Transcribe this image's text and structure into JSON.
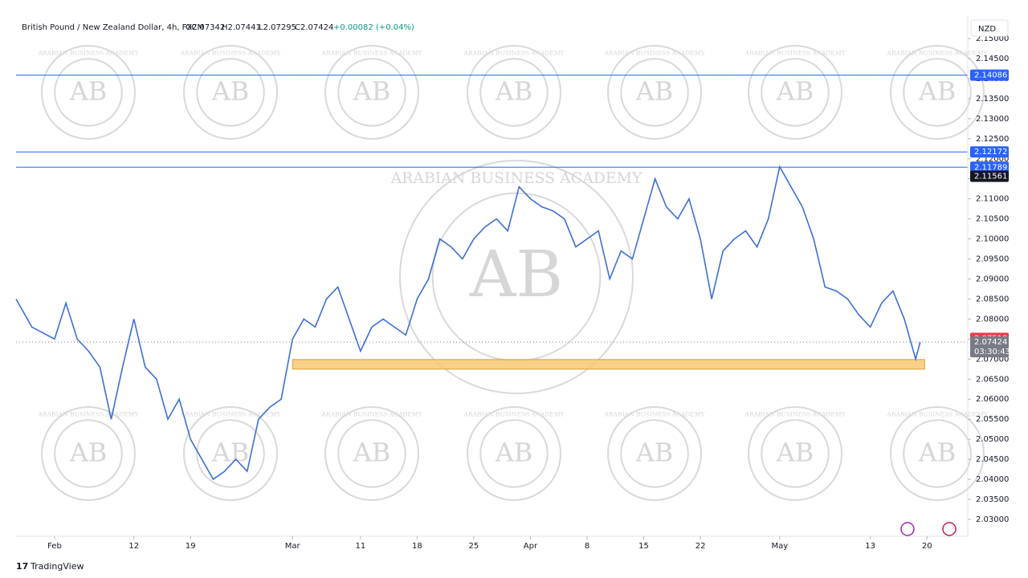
{
  "header": {
    "symbol": "British Pound / New Zealand Dollar, 4h, FXCM",
    "open": "O2.07342",
    "high": "H2.07441",
    "low": "L2.07295",
    "close": "C2.07424",
    "change": "+0.00082 (+0.04%)"
  },
  "currency": "NZD",
  "watermark": {
    "letters": "AB",
    "ring": "ARABIAN BUSINESS ACADEMY"
  },
  "footer": "TradingView",
  "chart_data": {
    "type": "line",
    "color": "#3d6fd6",
    "x": [
      -3.4,
      -2,
      0,
      1,
      2,
      3,
      4,
      5,
      6,
      7,
      8,
      9,
      10,
      11,
      12,
      13,
      14,
      15,
      16,
      17,
      18,
      19,
      20,
      21,
      22,
      23,
      24,
      25,
      26,
      27,
      28,
      29,
      30,
      31,
      32,
      33,
      34,
      35,
      36,
      37,
      38,
      39,
      40,
      41,
      42,
      43,
      44,
      45,
      46,
      47,
      48,
      49,
      50,
      51,
      52,
      53,
      54,
      55,
      56,
      57,
      58,
      59,
      60,
      61,
      62,
      63,
      64,
      65,
      66,
      67,
      68,
      69,
      70,
      71,
      72,
      73,
      74,
      75,
      76,
      76.4
    ],
    "values": [
      2.085,
      2.078,
      2.075,
      2.084,
      2.075,
      2.072,
      2.068,
      2.055,
      2.068,
      2.08,
      2.068,
      2.065,
      2.055,
      2.06,
      2.05,
      2.045,
      2.04,
      2.042,
      2.045,
      2.042,
      2.055,
      2.058,
      2.06,
      2.075,
      2.08,
      2.078,
      2.085,
      2.088,
      2.08,
      2.072,
      2.078,
      2.08,
      2.078,
      2.076,
      2.085,
      2.09,
      2.1,
      2.098,
      2.095,
      2.1,
      2.103,
      2.105,
      2.102,
      2.113,
      2.11,
      2.108,
      2.107,
      2.105,
      2.098,
      2.1,
      2.102,
      2.09,
      2.097,
      2.095,
      2.105,
      2.115,
      2.108,
      2.105,
      2.11,
      2.1,
      2.085,
      2.097,
      2.1,
      2.102,
      2.098,
      2.105,
      2.118,
      2.113,
      2.108,
      2.1,
      2.088,
      2.087,
      2.085,
      2.081,
      2.078,
      2.084,
      2.087,
      2.08,
      2.07,
      2.07424
    ],
    "xlim": [
      -3.4,
      80.6
    ],
    "xticks": [
      {
        "value": 0,
        "label": "Feb"
      },
      {
        "value": 7,
        "label": "12"
      },
      {
        "value": 12,
        "label": "19"
      },
      {
        "value": 21,
        "label": "Mar"
      },
      {
        "value": 27,
        "label": "11"
      },
      {
        "value": 32,
        "label": "18"
      },
      {
        "value": 37,
        "label": "25"
      },
      {
        "value": 42,
        "label": "Apr"
      },
      {
        "value": 47,
        "label": "8"
      },
      {
        "value": 52,
        "label": "15"
      },
      {
        "value": 57,
        "label": "22"
      },
      {
        "value": 64,
        "label": "May"
      },
      {
        "value": 72,
        "label": "13"
      },
      {
        "value": 77,
        "label": "20"
      }
    ],
    "ylim": [
      2.02579,
      2.15161
    ],
    "yticks": [
      {
        "value": 2.03,
        "label": "2.03000"
      },
      {
        "value": 2.035,
        "label": "2.03500"
      },
      {
        "value": 2.04,
        "label": "2.04000"
      },
      {
        "value": 2.045,
        "label": "2.04500"
      },
      {
        "value": 2.05,
        "label": "2.05000"
      },
      {
        "value": 2.055,
        "label": "2.05500"
      },
      {
        "value": 2.06,
        "label": "2.06000"
      },
      {
        "value": 2.065,
        "label": "2.06500"
      },
      {
        "value": 2.07,
        "label": "2.07000"
      },
      {
        "value": 2.075,
        "label": "2.07500"
      },
      {
        "value": 2.08,
        "label": "2.08000"
      },
      {
        "value": 2.085,
        "label": "2.08500"
      },
      {
        "value": 2.09,
        "label": "2.09000"
      },
      {
        "value": 2.095,
        "label": "2.09500"
      },
      {
        "value": 2.1,
        "label": "2.10000"
      },
      {
        "value": 2.105,
        "label": "2.10500"
      },
      {
        "value": 2.11,
        "label": "2.11000"
      },
      {
        "value": 2.115,
        "label": "2.11500"
      },
      {
        "value": 2.12,
        "label": "2.12000"
      },
      {
        "value": 2.125,
        "label": "2.12500"
      },
      {
        "value": 2.13,
        "label": "2.13000"
      },
      {
        "value": 2.135,
        "label": "2.13500"
      },
      {
        "value": 2.14,
        "label": "2.14000"
      },
      {
        "value": 2.145,
        "label": "2.14500"
      },
      {
        "value": 2.15,
        "label": "2.15000"
      }
    ],
    "levels": [
      {
        "value": 2.14086,
        "color": "#2962ff"
      },
      {
        "value": 2.12172,
        "color": "#2962ff"
      },
      {
        "value": 2.11789,
        "color": "#2962ff"
      },
      {
        "value": 2.11561,
        "color": "#131722"
      }
    ],
    "zone": {
      "from": 21,
      "to": 76.8,
      "low": 2.0675,
      "high": 2.0699,
      "color": "#f7c873"
    },
    "marker": {
      "value": 2.07518,
      "color": "#f23645"
    },
    "last_price": 2.07424,
    "countdown": "03:30:43"
  }
}
